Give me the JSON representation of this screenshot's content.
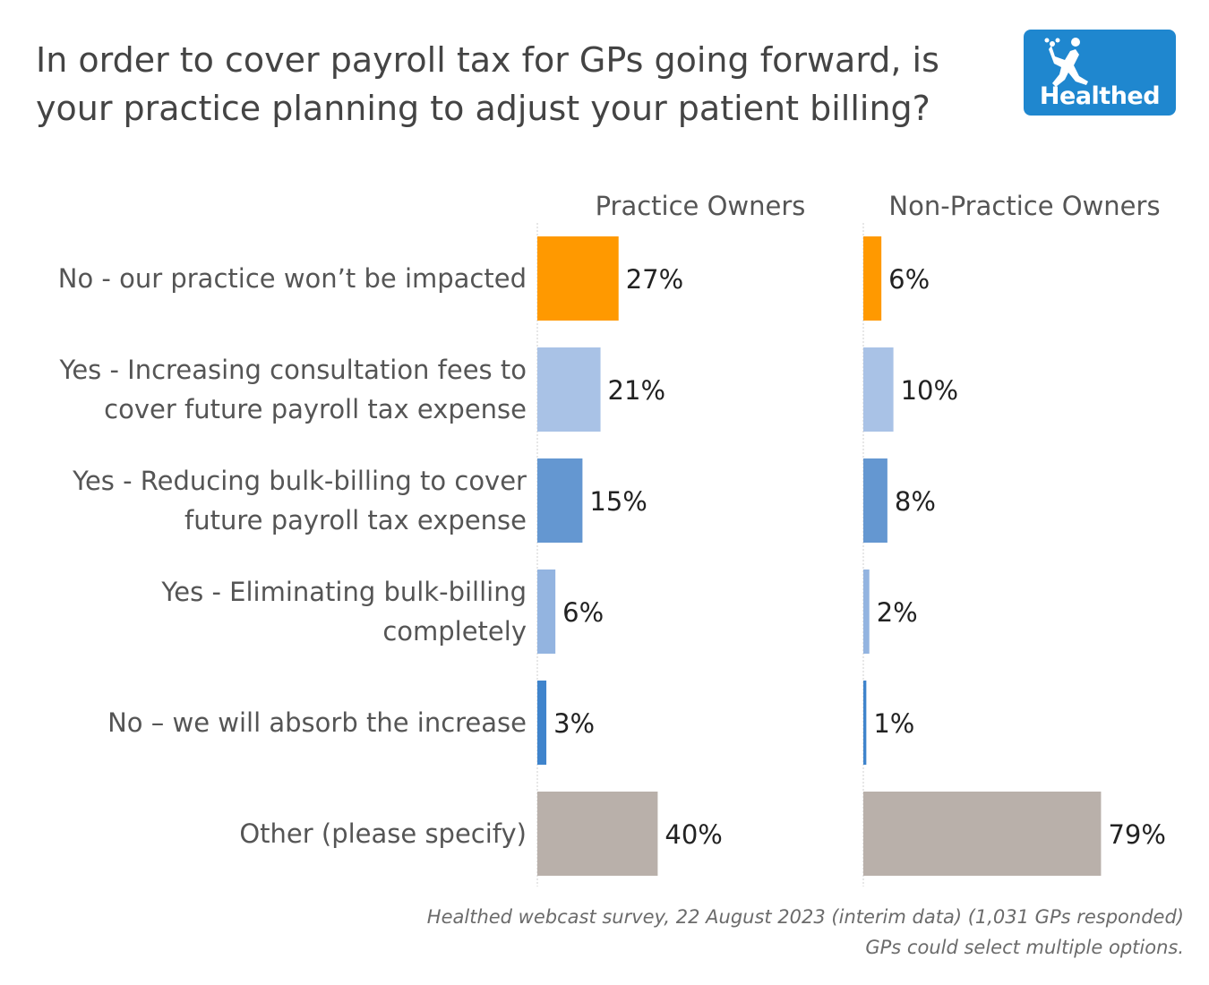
{
  "chart_data": {
    "type": "bar",
    "orientation": "horizontal",
    "title": "In order to cover payroll tax for GPs going forward, is your practice planning to adjust your patient billing?",
    "categories": [
      "No - our practice won’t be impacted",
      "Yes - Increasing consultation fees to cover future payroll tax expense",
      "Yes - Reducing bulk-billing to cover future payroll tax expense",
      "Yes - Eliminating bulk-billing completely",
      "No – we will absorb the increase",
      "Other (please specify)"
    ],
    "category_colors": [
      "#ff9900",
      "#a9c2e6",
      "#6497d1",
      "#93b4e0",
      "#3f84cc",
      "#b9b0aa"
    ],
    "series": [
      {
        "name": "Practice Owners",
        "values": [
          27,
          21,
          15,
          6,
          3,
          40
        ],
        "labels": [
          "27%",
          "21%",
          "15%",
          "6%",
          "3%",
          "40%"
        ]
      },
      {
        "name": "Non-Practice Owners",
        "values": [
          6,
          10,
          8,
          2,
          1,
          79
        ],
        "labels": [
          "6%",
          "10%",
          "8%",
          "2%",
          "1%",
          "79%"
        ]
      }
    ],
    "value_unit": "%",
    "xlim": [
      0,
      100
    ],
    "grid": false,
    "legend": "none"
  },
  "footnote": {
    "line1": "Healthed webcast survey, 22 August 2023 (interim data) (1,031 GPs responded)",
    "line2": "GPs could select multiple options."
  },
  "logo": {
    "text": "Healthed",
    "color": "#1f87cf",
    "icon": "runner-icon"
  }
}
